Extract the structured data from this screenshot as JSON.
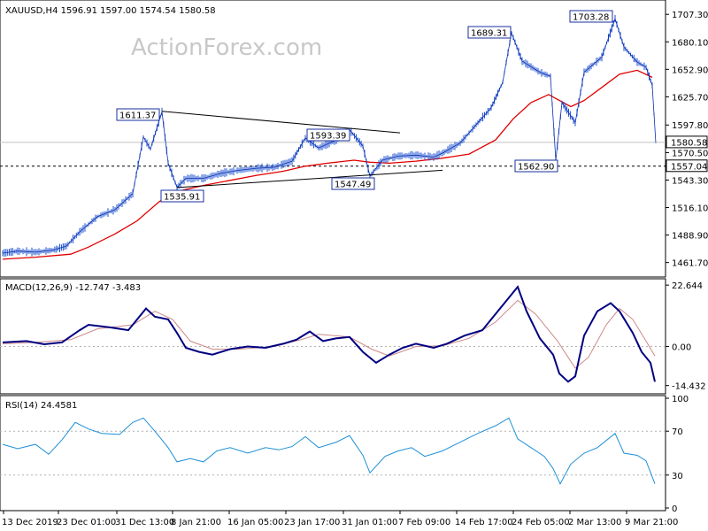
{
  "chart_data": [
    {
      "type": "candlestick",
      "header": "XAUUSD,H4  1596.91 1597.00 1574.54 1580.58",
      "watermark": "ActionForex.com",
      "ylim": [
        1450.0,
        1718.0
      ],
      "y_ticks": [
        "1707.30",
        "1680.10",
        "1652.90",
        "1625.70",
        "1597.80",
        "1570.50",
        "1543.30",
        "1516.10",
        "1488.90",
        "1461.70"
      ],
      "x_ticks": [
        "13 Dec 2019",
        "23 Dec 01:00",
        "31 Dec 13:00",
        "8 Jan 21:00",
        "16 Jan 05:00",
        "23 Jan 17:00",
        "31 Jan 01:00",
        "7 Feb 09:00",
        "14 Feb 17:00",
        "24 Feb 05:00",
        "2 Mar 13:00",
        "9 Mar 21:00"
      ],
      "price_markers": [
        {
          "label": "1580.58",
          "value": 1580.58,
          "style": "current"
        },
        {
          "label": "1557.04",
          "value": 1557.04,
          "style": "dashed-level"
        }
      ],
      "annotations": [
        {
          "label": "1611.37",
          "x": 183,
          "value": 1611.37
        },
        {
          "label": "1535.91",
          "x": 200,
          "value": 1535.91
        },
        {
          "label": "1593.39",
          "x": 395,
          "value": 1593.39
        },
        {
          "label": "1547.49",
          "x": 418,
          "value": 1547.49
        },
        {
          "label": "1689.31",
          "x": 578,
          "value": 1689.31
        },
        {
          "label": "1562.90",
          "x": 628,
          "value": 1562.9
        },
        {
          "label": "1703.28",
          "x": 695,
          "value": 1703.28
        }
      ],
      "trendlines": [
        {
          "from": [
            183,
            1611.37
          ],
          "to": [
            452,
            1590.0
          ]
        },
        {
          "from": [
            200,
            1535.91
          ],
          "to": [
            500,
            1553.0
          ]
        }
      ],
      "price_path": [
        [
          3,
          1471
        ],
        [
          20,
          1473
        ],
        [
          40,
          1472
        ],
        [
          60,
          1474
        ],
        [
          75,
          1478
        ],
        [
          90,
          1492
        ],
        [
          110,
          1507
        ],
        [
          130,
          1514
        ],
        [
          150,
          1530
        ],
        [
          162,
          1586
        ],
        [
          170,
          1574
        ],
        [
          183,
          1611
        ],
        [
          190,
          1560
        ],
        [
          200,
          1536
        ],
        [
          210,
          1545
        ],
        [
          230,
          1545
        ],
        [
          250,
          1550
        ],
        [
          270,
          1553
        ],
        [
          290,
          1555
        ],
        [
          310,
          1556
        ],
        [
          330,
          1562
        ],
        [
          345,
          1585
        ],
        [
          360,
          1575
        ],
        [
          380,
          1583
        ],
        [
          395,
          1593
        ],
        [
          410,
          1577
        ],
        [
          418,
          1547
        ],
        [
          432,
          1563
        ],
        [
          450,
          1567
        ],
        [
          470,
          1568
        ],
        [
          490,
          1566
        ],
        [
          500,
          1570
        ],
        [
          520,
          1580
        ],
        [
          540,
          1600
        ],
        [
          555,
          1615
        ],
        [
          568,
          1640
        ],
        [
          578,
          1689
        ],
        [
          590,
          1661
        ],
        [
          610,
          1650
        ],
        [
          622,
          1646
        ],
        [
          628,
          1563
        ],
        [
          635,
          1620
        ],
        [
          650,
          1600
        ],
        [
          660,
          1650
        ],
        [
          680,
          1665
        ],
        [
          695,
          1703
        ],
        [
          705,
          1675
        ],
        [
          720,
          1660
        ],
        [
          730,
          1655
        ],
        [
          737,
          1637
        ],
        [
          741,
          1580
        ]
      ],
      "ma_path": [
        [
          3,
          1465
        ],
        [
          40,
          1467
        ],
        [
          80,
          1470
        ],
        [
          100,
          1477
        ],
        [
          130,
          1490
        ],
        [
          155,
          1503
        ],
        [
          180,
          1522
        ],
        [
          200,
          1532
        ],
        [
          230,
          1538
        ],
        [
          260,
          1543
        ],
        [
          290,
          1548
        ],
        [
          320,
          1552
        ],
        [
          345,
          1557
        ],
        [
          370,
          1560
        ],
        [
          400,
          1563
        ],
        [
          418,
          1561
        ],
        [
          440,
          1560
        ],
        [
          470,
          1562
        ],
        [
          500,
          1565
        ],
        [
          530,
          1569
        ],
        [
          560,
          1583
        ],
        [
          580,
          1604
        ],
        [
          600,
          1620
        ],
        [
          620,
          1628
        ],
        [
          628,
          1624
        ],
        [
          645,
          1616
        ],
        [
          660,
          1622
        ],
        [
          680,
          1635
        ],
        [
          700,
          1648
        ],
        [
          720,
          1652
        ],
        [
          737,
          1645
        ]
      ]
    },
    {
      "type": "line",
      "name": "MACD",
      "header": "MACD(12,26,9) -12.747 -3.483",
      "ylim": [
        -16.5,
        24.0
      ],
      "y_ticks": [
        "22.644",
        "0.00",
        "-14.432"
      ],
      "macd": [
        [
          3,
          1.5
        ],
        [
          30,
          2.0
        ],
        [
          50,
          0.8
        ],
        [
          70,
          1.5
        ],
        [
          90,
          6
        ],
        [
          100,
          8
        ],
        [
          125,
          7
        ],
        [
          145,
          6
        ],
        [
          165,
          14
        ],
        [
          175,
          11
        ],
        [
          190,
          10
        ],
        [
          200,
          5
        ],
        [
          210,
          -0.5
        ],
        [
          225,
          -2
        ],
        [
          240,
          -3
        ],
        [
          260,
          -1
        ],
        [
          280,
          0
        ],
        [
          300,
          -0.5
        ],
        [
          320,
          1
        ],
        [
          335,
          2.5
        ],
        [
          350,
          5.5
        ],
        [
          365,
          2
        ],
        [
          380,
          3
        ],
        [
          395,
          3.5
        ],
        [
          410,
          -2
        ],
        [
          425,
          -6
        ],
        [
          440,
          -3
        ],
        [
          455,
          -0.5
        ],
        [
          470,
          1
        ],
        [
          490,
          -0.5
        ],
        [
          505,
          1
        ],
        [
          525,
          4
        ],
        [
          545,
          6
        ],
        [
          560,
          12
        ],
        [
          575,
          18
        ],
        [
          585,
          22
        ],
        [
          595,
          13
        ],
        [
          610,
          3
        ],
        [
          625,
          -3
        ],
        [
          632,
          -10
        ],
        [
          642,
          -13
        ],
        [
          650,
          -11
        ],
        [
          660,
          4
        ],
        [
          675,
          13
        ],
        [
          690,
          16
        ],
        [
          700,
          13
        ],
        [
          715,
          5
        ],
        [
          725,
          -2
        ],
        [
          735,
          -6
        ],
        [
          740,
          -13
        ]
      ],
      "signal": [
        [
          3,
          1.0
        ],
        [
          40,
          1.5
        ],
        [
          80,
          2.5
        ],
        [
          110,
          6.5
        ],
        [
          150,
          8
        ],
        [
          175,
          13
        ],
        [
          195,
          10
        ],
        [
          215,
          2
        ],
        [
          240,
          -1
        ],
        [
          270,
          -1
        ],
        [
          310,
          0
        ],
        [
          340,
          2.5
        ],
        [
          360,
          4.5
        ],
        [
          395,
          3.5
        ],
        [
          420,
          -1
        ],
        [
          440,
          -3.5
        ],
        [
          470,
          0
        ],
        [
          500,
          0.3
        ],
        [
          530,
          3
        ],
        [
          560,
          9
        ],
        [
          585,
          17
        ],
        [
          605,
          12
        ],
        [
          630,
          2
        ],
        [
          650,
          -8
        ],
        [
          665,
          -4
        ],
        [
          685,
          8
        ],
        [
          700,
          14
        ],
        [
          715,
          10
        ],
        [
          730,
          2
        ],
        [
          740,
          -3.5
        ]
      ]
    },
    {
      "type": "line",
      "name": "RSI",
      "header": "RSI(14) 24.4581",
      "ylim": [
        0,
        100
      ],
      "y_ticks": [
        "100",
        "70",
        "30",
        "0"
      ],
      "rsi": [
        [
          3,
          58
        ],
        [
          20,
          54
        ],
        [
          40,
          58
        ],
        [
          55,
          49
        ],
        [
          70,
          62
        ],
        [
          85,
          78
        ],
        [
          100,
          72
        ],
        [
          115,
          68
        ],
        [
          135,
          67
        ],
        [
          150,
          78
        ],
        [
          162,
          82
        ],
        [
          175,
          70
        ],
        [
          190,
          55
        ],
        [
          200,
          42
        ],
        [
          215,
          45
        ],
        [
          230,
          42
        ],
        [
          245,
          52
        ],
        [
          260,
          55
        ],
        [
          280,
          50
        ],
        [
          300,
          55
        ],
        [
          315,
          53
        ],
        [
          330,
          56
        ],
        [
          345,
          65
        ],
        [
          360,
          55
        ],
        [
          380,
          60
        ],
        [
          395,
          66
        ],
        [
          410,
          48
        ],
        [
          418,
          32
        ],
        [
          435,
          47
        ],
        [
          450,
          52
        ],
        [
          465,
          55
        ],
        [
          480,
          47
        ],
        [
          500,
          52
        ],
        [
          520,
          60
        ],
        [
          540,
          68
        ],
        [
          560,
          75
        ],
        [
          575,
          82
        ],
        [
          585,
          63
        ],
        [
          600,
          55
        ],
        [
          615,
          47
        ],
        [
          625,
          36
        ],
        [
          633,
          22
        ],
        [
          645,
          40
        ],
        [
          660,
          50
        ],
        [
          675,
          55
        ],
        [
          695,
          68
        ],
        [
          705,
          50
        ],
        [
          720,
          48
        ],
        [
          730,
          43
        ],
        [
          740,
          22
        ]
      ]
    }
  ]
}
